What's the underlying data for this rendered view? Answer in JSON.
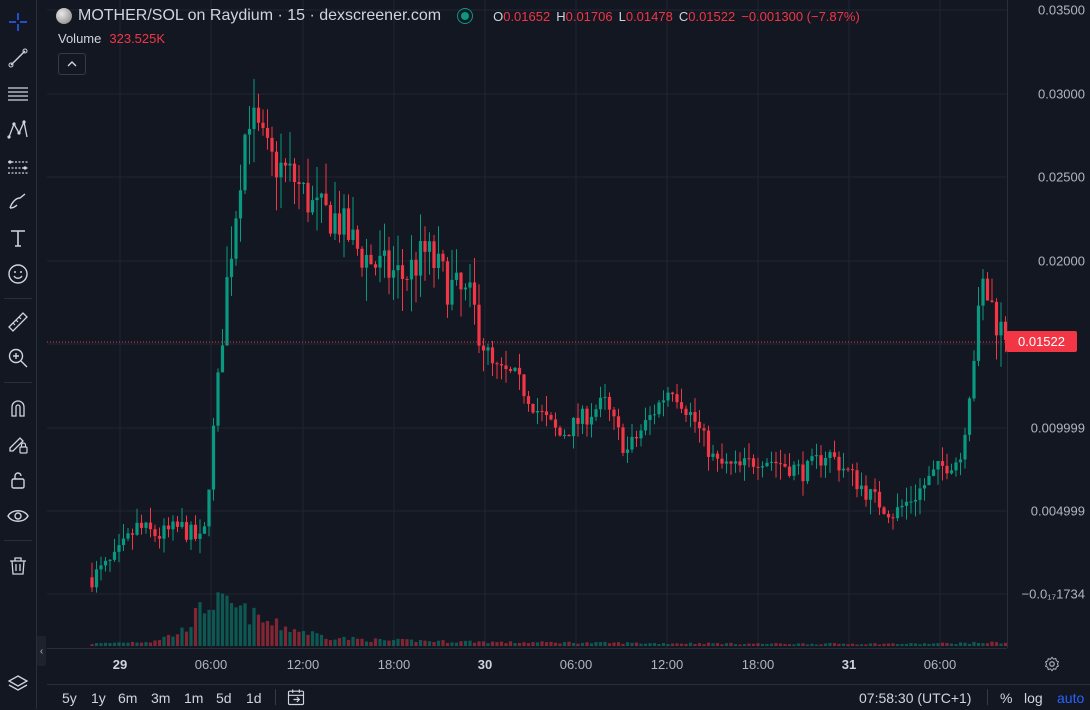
{
  "header": {
    "title": "MOTHER/SOL on Raydium · 15 · dexscreener.com",
    "ohlc": {
      "o_label": "O",
      "o_value": "0.01652",
      "h_label": "H",
      "h_value": "0.01706",
      "l_label": "L",
      "l_value": "0.01478",
      "c_label": "C",
      "c_value": "0.01522",
      "change": "−0.001300 (−7.87%)"
    },
    "volume_label": "Volume",
    "volume_value": "323.525K"
  },
  "price_axis": {
    "ticks": [
      "0.03500",
      "0.03000",
      "0.02500",
      "0.02000",
      "0.009999",
      "0.004999",
      "−0.0₁₇1734"
    ],
    "current_price": "0.01522"
  },
  "time_axis": {
    "ticks": [
      "29",
      "06:00",
      "12:00",
      "18:00",
      "30",
      "06:00",
      "12:00",
      "18:00",
      "31",
      "06:00"
    ]
  },
  "bottom_bar": {
    "ranges": [
      "5y",
      "1y",
      "6m",
      "3m",
      "1m",
      "5d",
      "1d"
    ],
    "clock": "07:58:30 (UTC+1)",
    "percent_label": "%",
    "log_label": "log",
    "auto_label": "auto"
  },
  "toolbar": {
    "icons": [
      "crosshair-icon",
      "trend-line-icon",
      "horizontal-lines-icon",
      "pattern-icon",
      "projection-icon",
      "brush-icon",
      "text-icon",
      "emoji-icon",
      "ruler-icon",
      "zoom-in-icon",
      "magnet-icon",
      "lock-draw-icon",
      "lock-icon",
      "eye-icon",
      "trash-icon",
      "layers-icon"
    ]
  },
  "colors": {
    "up": "#089981",
    "down": "#f23645",
    "background": "#131722",
    "grid": "#1f2431",
    "accent": "#2962ff"
  },
  "chart_data": {
    "type": "candlestick",
    "symbol": "MOTHER/SOL",
    "interval": "15",
    "ylim": [
      -0.005,
      0.035
    ],
    "last": 0.01522,
    "x_labels": [
      "29",
      "06:00",
      "12:00",
      "18:00",
      "30",
      "06:00",
      "12:00",
      "18:00",
      "31",
      "06:00"
    ],
    "close_path": [
      0.001,
      0.002,
      0.004,
      0.0035,
      0.004,
      0.003,
      0.018,
      0.029,
      0.026,
      0.025,
      0.023,
      0.0225,
      0.0205,
      0.0195,
      0.019,
      0.0205,
      0.0185,
      0.0175,
      0.0135,
      0.013,
      0.011,
      0.0095,
      0.0105,
      0.0115,
      0.0085,
      0.0105,
      0.0125,
      0.0105,
      0.0078,
      0.0075,
      0.0082,
      0.0078,
      0.0073,
      0.0085,
      0.0072,
      0.0058,
      0.0048,
      0.006,
      0.0075,
      0.0082,
      0.0185,
      0.0152
    ],
    "volume_path": [
      0.05,
      0.08,
      0.1,
      0.3,
      1.0,
      0.8,
      0.5,
      0.35,
      0.2,
      0.15,
      0.12,
      0.12,
      0.1,
      0.1,
      0.08,
      0.08,
      0.08,
      0.07,
      0.07,
      0.06,
      0.06,
      0.06,
      0.05,
      0.05,
      0.05,
      0.05,
      0.05,
      0.05,
      0.05,
      0.06,
      0.07,
      0.08
    ]
  }
}
